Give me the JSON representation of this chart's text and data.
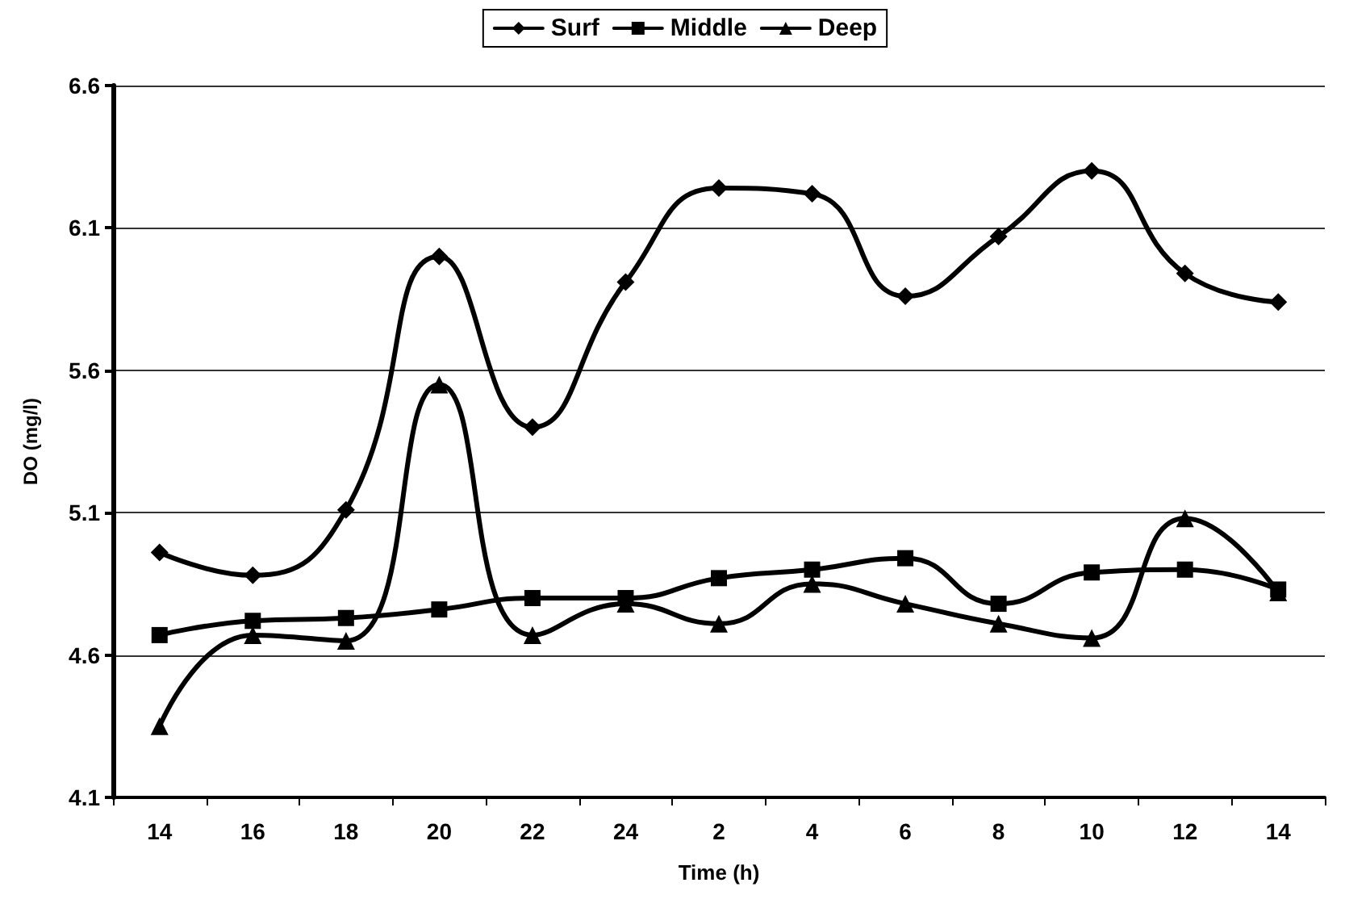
{
  "chart_data": {
    "type": "line",
    "xlabel": "Time (h)",
    "ylabel": "DO (mg/l)",
    "categories": [
      "14",
      "16",
      "18",
      "20",
      "22",
      "24",
      "2",
      "4",
      "6",
      "8",
      "10",
      "12",
      "14"
    ],
    "series": [
      {
        "name": "Surf",
        "color": "#000000",
        "marker": "diamond",
        "values": [
          4.96,
          4.88,
          5.11,
          6.0,
          5.4,
          5.91,
          6.24,
          6.22,
          5.86,
          6.07,
          6.3,
          5.94,
          5.84
        ]
      },
      {
        "name": "Middle",
        "color": "#000000",
        "marker": "square",
        "values": [
          4.67,
          4.72,
          4.73,
          4.76,
          4.8,
          4.8,
          4.87,
          4.9,
          4.94,
          4.78,
          4.89,
          4.9,
          4.83
        ]
      },
      {
        "name": "Deep",
        "color": "#000000",
        "marker": "triangle",
        "values": [
          4.35,
          4.67,
          4.65,
          5.55,
          4.67,
          4.78,
          4.71,
          4.85,
          4.78,
          4.71,
          4.66,
          5.08,
          4.82
        ]
      }
    ],
    "ylim": [
      4.1,
      6.6
    ],
    "yticks": [
      4.1,
      4.6,
      5.1,
      5.6,
      6.1,
      6.6
    ],
    "grid": "y",
    "legend": "top",
    "line_style": "solid"
  }
}
